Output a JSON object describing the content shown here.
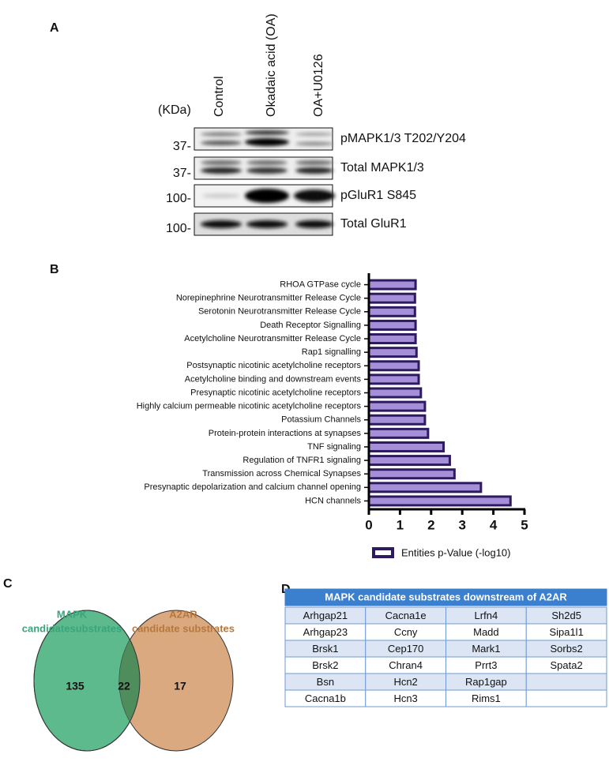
{
  "panels": {
    "a": "A",
    "b": "B",
    "c": "C",
    "d": "D"
  },
  "blot": {
    "unit": "(KDa)",
    "lanes": [
      "Control",
      "Okadaic acid (OA)",
      "OA+U0126"
    ],
    "rows": [
      {
        "marker": "37-",
        "label": "pMAPK1/3 T202/Y204"
      },
      {
        "marker": "37-",
        "label": "Total MAPK1/3"
      },
      {
        "marker": "100-",
        "label": "pGluR1 S845"
      },
      {
        "marker": "100-",
        "label": "Total GluR1"
      }
    ]
  },
  "chart_data": {
    "type": "hbar",
    "categories": [
      "RHOA GTPase cycle",
      "Norepinephrine Neurotransmitter Release Cycle",
      "Serotonin Neurotransmitter Release Cycle",
      "Death Receptor Signalling",
      "Acetylcholine Neurotransmitter Release Cycle",
      "Rap1 signalling",
      "Postsynaptic nicotinic acetylcholine receptors",
      "Acetylcholine binding and downstream events",
      "Presynaptic nicotinic acetylcholine receptors",
      "Highly calcium permeable nicotinic acetylcholine receptors",
      "Potassium Channels",
      "Protein-protein interactions at synapses",
      "TNF signaling",
      "Regulation of TNFR1 signaling",
      "Transmission across Chemical Synapses",
      "Presynaptic depolarization and calcium channel opening",
      "HCN channels"
    ],
    "series": [
      {
        "name": "Entities p-Value (-log10)",
        "color": "#a58fd8",
        "edgecolor": "#2e1a5e",
        "values": [
          1.5,
          1.48,
          1.48,
          1.5,
          1.5,
          1.53,
          1.6,
          1.6,
          1.67,
          1.8,
          1.8,
          1.9,
          2.4,
          2.6,
          2.75,
          3.6,
          4.55
        ]
      }
    ],
    "xlim": [
      0,
      5
    ],
    "xticks": [
      0,
      1,
      2,
      3,
      4,
      5
    ],
    "legend": "bottom"
  },
  "venn": {
    "left": {
      "label": [
        "MAPK",
        "candidatesubstrates"
      ],
      "count": "135"
    },
    "overlap": "22",
    "right": {
      "label": [
        "A2AR",
        "candidate substrates"
      ],
      "count": "17"
    }
  },
  "table": {
    "title": "MAPK candidate substrates downstream of A2AR",
    "rows": [
      [
        "Arhgap21",
        "Cacna1e",
        "Lrfn4",
        "Sh2d5"
      ],
      [
        "Arhgap23",
        "Ccny",
        "Madd",
        "Sipa1l1"
      ],
      [
        "Brsk1",
        "Cep170",
        "Mark1",
        "Sorbs2"
      ],
      [
        "Brsk2",
        "Chran4",
        "Prrt3",
        "Spata2"
      ],
      [
        "Bsn",
        "Hcn2",
        "Rap1gap"
      ],
      [
        "Cacna1b",
        "Hcn3",
        "Rims1"
      ]
    ]
  }
}
